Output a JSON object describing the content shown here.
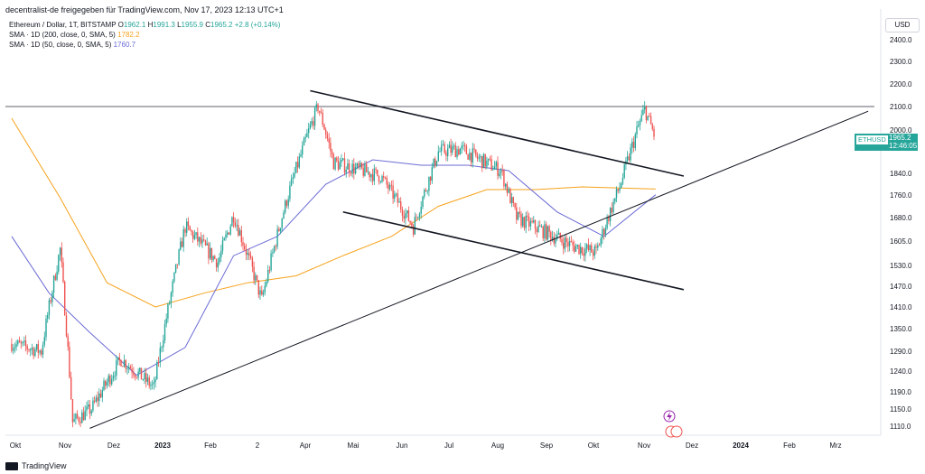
{
  "header": {
    "attribution": "decentralist-de freigegeben für TradingView.com, Nov 17, 2023 12:13 UTC+1"
  },
  "legend": {
    "symbol_line": "Ethereum / Dollar, 1T, BITSTAMP",
    "o_label": "O",
    "o_value": "1962.1",
    "h_label": "H",
    "h_value": "1991.3",
    "l_label": "L",
    "l_value": "1955.9",
    "c_label": "C",
    "c_value": "1965.2",
    "change": "+2.8 (+0.14%)",
    "sma200_label": "SMA · 1D (200, close, 0, SMA, 5)",
    "sma200_value": "1782.2",
    "sma50_label": "SMA · 1D (50, close, 0, SMA, 5)",
    "sma50_value": "1760.7"
  },
  "currency": "USD",
  "price_tag": {
    "symbol": "ETHUSD",
    "price": "1965.2",
    "countdown": "12:46:05"
  },
  "footer": {
    "brand": "TradingView"
  },
  "colors": {
    "up": "#26a69a",
    "down": "#ef5350",
    "sma200": "#f7a21b",
    "sma50": "#6b6bd6",
    "trend": "#131722"
  },
  "chart_data": {
    "type": "candlestick",
    "title": "Ethereum / Dollar, 1T, BITSTAMP",
    "y_ticks": [
      "2400.0",
      "2300.0",
      "2200.0",
      "2100.0",
      "2000.0",
      "1840.0",
      "1760.0",
      "1680.0",
      "1605.0",
      "1530.0",
      "1470.0",
      "1410.0",
      "1350.0",
      "1290.0",
      "1240.0",
      "1190.0",
      "1150.0",
      "1110.0"
    ],
    "x_ticks": [
      "Okt",
      "Nov",
      "Dez",
      "2023",
      "Feb",
      "2",
      "Apr",
      "Mai",
      "Jun",
      "Jul",
      "Aug",
      "Sep",
      "Okt",
      "Nov",
      "Dez",
      "2024",
      "Feb",
      "Mrz"
    ],
    "price_series": [
      {
        "t": "2022-10-01",
        "v": 1310
      },
      {
        "t": "2022-10-20",
        "v": 1290
      },
      {
        "t": "2022-11-01",
        "v": 1580
      },
      {
        "t": "2022-11-09",
        "v": 1120
      },
      {
        "t": "2022-11-21",
        "v": 1150
      },
      {
        "t": "2022-12-10",
        "v": 1270
      },
      {
        "t": "2022-12-31",
        "v": 1200
      },
      {
        "t": "2023-01-20",
        "v": 1650
      },
      {
        "t": "2023-02-10",
        "v": 1540
      },
      {
        "t": "2023-02-20",
        "v": 1690
      },
      {
        "t": "2023-03-10",
        "v": 1430
      },
      {
        "t": "2023-03-30",
        "v": 1820
      },
      {
        "t": "2023-04-15",
        "v": 2100
      },
      {
        "t": "2023-04-25",
        "v": 1880
      },
      {
        "t": "2023-05-25",
        "v": 1830
      },
      {
        "t": "2023-06-15",
        "v": 1650
      },
      {
        "t": "2023-07-01",
        "v": 1920
      },
      {
        "t": "2023-07-15",
        "v": 1930
      },
      {
        "t": "2023-08-10",
        "v": 1850
      },
      {
        "t": "2023-08-20",
        "v": 1680
      },
      {
        "t": "2023-09-05",
        "v": 1640
      },
      {
        "t": "2023-09-25",
        "v": 1590
      },
      {
        "t": "2023-10-10",
        "v": 1570
      },
      {
        "t": "2023-10-25",
        "v": 1790
      },
      {
        "t": "2023-11-10",
        "v": 2090
      },
      {
        "t": "2023-11-17",
        "v": 1965
      }
    ],
    "sma200": [
      {
        "t": "2022-10-01",
        "v": 2050
      },
      {
        "t": "2022-11-01",
        "v": 1750
      },
      {
        "t": "2022-12-01",
        "v": 1480
      },
      {
        "t": "2023-01-01",
        "v": 1410
      },
      {
        "t": "2023-02-01",
        "v": 1450
      },
      {
        "t": "2023-03-01",
        "v": 1480
      },
      {
        "t": "2023-04-01",
        "v": 1500
      },
      {
        "t": "2023-05-01",
        "v": 1560
      },
      {
        "t": "2023-06-01",
        "v": 1620
      },
      {
        "t": "2023-07-01",
        "v": 1720
      },
      {
        "t": "2023-08-01",
        "v": 1780
      },
      {
        "t": "2023-09-01",
        "v": 1780
      },
      {
        "t": "2023-10-01",
        "v": 1790
      },
      {
        "t": "2023-11-17",
        "v": 1782
      }
    ],
    "sma50": [
      {
        "t": "2022-10-01",
        "v": 1620
      },
      {
        "t": "2022-10-25",
        "v": 1450
      },
      {
        "t": "2022-11-20",
        "v": 1340
      },
      {
        "t": "2022-12-20",
        "v": 1230
      },
      {
        "t": "2023-01-20",
        "v": 1300
      },
      {
        "t": "2023-02-20",
        "v": 1560
      },
      {
        "t": "2023-03-20",
        "v": 1620
      },
      {
        "t": "2023-04-20",
        "v": 1800
      },
      {
        "t": "2023-05-20",
        "v": 1890
      },
      {
        "t": "2023-06-20",
        "v": 1870
      },
      {
        "t": "2023-07-20",
        "v": 1870
      },
      {
        "t": "2023-08-15",
        "v": 1850
      },
      {
        "t": "2023-09-15",
        "v": 1700
      },
      {
        "t": "2023-10-15",
        "v": 1620
      },
      {
        "t": "2023-11-17",
        "v": 1761
      }
    ],
    "horizontal_line": 2100,
    "trend_lines": [
      {
        "name": "upper-channel",
        "from": {
          "t": "2023-04-10",
          "v": 2170
        },
        "to": {
          "t": "2023-12-05",
          "v": 1830
        }
      },
      {
        "name": "lower-channel",
        "from": {
          "t": "2023-05-01",
          "v": 1700
        },
        "to": {
          "t": "2023-12-05",
          "v": 1460
        }
      },
      {
        "name": "rising-support",
        "from": {
          "t": "2022-11-20",
          "v": 1105
        },
        "to": {
          "t": "2024-04-01",
          "v": 2080
        }
      }
    ]
  }
}
